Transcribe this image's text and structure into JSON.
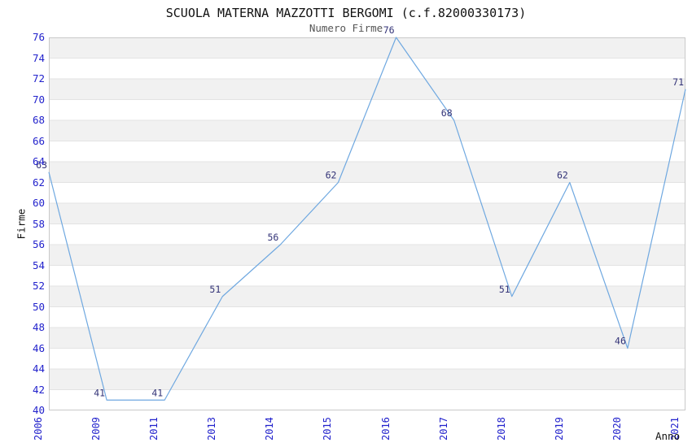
{
  "chart_data": {
    "type": "line",
    "title": "SCUOLA MATERNA MAZZOTTI BERGOMI (c.f.82000330173)",
    "subtitle": "Numero Firme",
    "xlabel": "Anno",
    "ylabel": "Firme",
    "categories": [
      "2006",
      "2009",
      "2011",
      "2013",
      "2014",
      "2015",
      "2016",
      "2017",
      "2018",
      "2019",
      "2020",
      "2021"
    ],
    "series": [
      {
        "name": "Numero Firme",
        "values": [
          63,
          41,
          41,
          51,
          56,
          62,
          76,
          68,
          51,
          62,
          46,
          71
        ]
      }
    ],
    "ylim": [
      40,
      76
    ],
    "ytick_step": 2,
    "grid": "horizontal-bands-alternating",
    "legend_position": "none",
    "point_labels_visible": true,
    "colors": {
      "line": "#6fa8e0",
      "tick_label": "#2222cc",
      "point_label": "#333377",
      "band_fill": "#f1f1f1",
      "gridline": "#e3e3e3",
      "plot_border": "#c9c9c9",
      "title_text": "#111111",
      "subtitle_text": "#555555",
      "axis_label_text": "#111111",
      "background": "#ffffff"
    }
  }
}
